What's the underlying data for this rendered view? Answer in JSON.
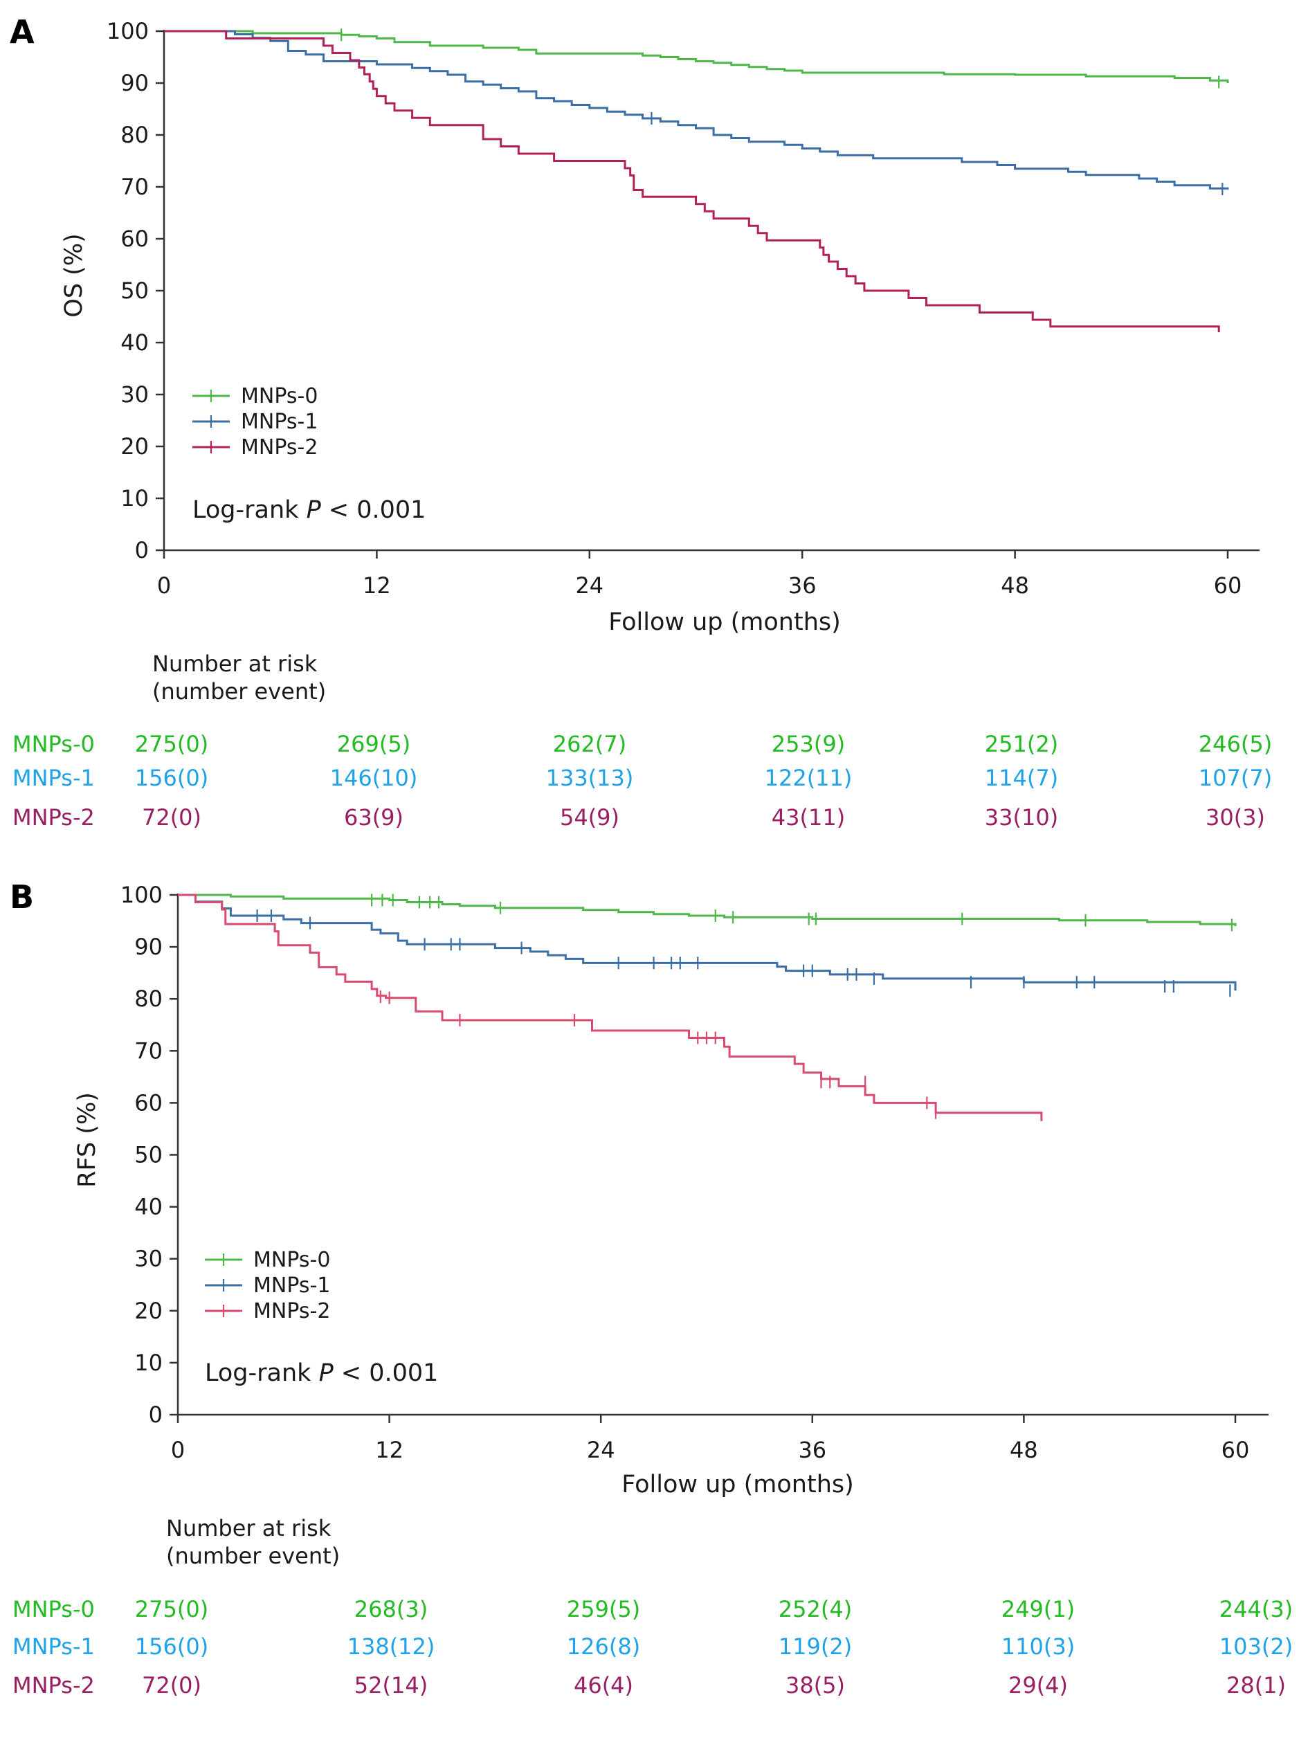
{
  "chart_data": [
    {
      "panel": "A",
      "type": "line",
      "ylabel": "OS (%)",
      "xlabel": "Follow up (months)",
      "xlim": [
        0,
        60
      ],
      "ylim": [
        0,
        100
      ],
      "xticks": [
        0,
        12,
        24,
        36,
        48,
        60
      ],
      "yticks": [
        0,
        10,
        20,
        30,
        40,
        50,
        60,
        70,
        80,
        90,
        100
      ],
      "grid": false,
      "legend_position": "lower-left",
      "annotation": {
        "prefix": "Log-rank ",
        "italic": "P",
        "suffix": " < 0.001"
      },
      "series": [
        {
          "name": "MNPs-0",
          "color": "#4db848",
          "points": [
            [
              0,
              100
            ],
            [
              5,
              99.6
            ],
            [
              10,
              99.3
            ],
            [
              11,
              99
            ],
            [
              12,
              98.6
            ],
            [
              13,
              97.9
            ],
            [
              15,
              97.2
            ],
            [
              18,
              96.8
            ],
            [
              20,
              96.4
            ],
            [
              21,
              95.7
            ],
            [
              27,
              95.3
            ],
            [
              28,
              95
            ],
            [
              29,
              94.6
            ],
            [
              30,
              94.2
            ],
            [
              31,
              93.9
            ],
            [
              32,
              93.5
            ],
            [
              33,
              93.1
            ],
            [
              34,
              92.7
            ],
            [
              35,
              92.4
            ],
            [
              36,
              92
            ],
            [
              40,
              92
            ],
            [
              44,
              91.7
            ],
            [
              48,
              91.6
            ],
            [
              52,
              91.3
            ],
            [
              57,
              91
            ],
            [
              59,
              90.5
            ],
            [
              60,
              90
            ]
          ],
          "censor": [
            [
              10,
              99.3
            ],
            [
              59.5,
              90.2
            ]
          ]
        },
        {
          "name": "MNPs-1",
          "color": "#3a6ea5",
          "points": [
            [
              0,
              100
            ],
            [
              4,
              99.4
            ],
            [
              5,
              98.7
            ],
            [
              6,
              98.1
            ],
            [
              7,
              96.2
            ],
            [
              8,
              95.5
            ],
            [
              9,
              94.2
            ],
            [
              12,
              93.6
            ],
            [
              14,
              92.9
            ],
            [
              15,
              92.3
            ],
            [
              16,
              91.6
            ],
            [
              17,
              90.3
            ],
            [
              18,
              89.7
            ],
            [
              19,
              89
            ],
            [
              20,
              88.4
            ],
            [
              21,
              87.1
            ],
            [
              22,
              86.5
            ],
            [
              23,
              85.8
            ],
            [
              24,
              85.2
            ],
            [
              25,
              84.5
            ],
            [
              26,
              83.9
            ],
            [
              27,
              83.2
            ],
            [
              28,
              82.6
            ],
            [
              29,
              81.9
            ],
            [
              30,
              81.3
            ],
            [
              31,
              80
            ],
            [
              32,
              79.4
            ],
            [
              33,
              78.7
            ],
            [
              35,
              78.1
            ],
            [
              36,
              77.4
            ],
            [
              37,
              76.8
            ],
            [
              38,
              76.1
            ],
            [
              40,
              75.5
            ],
            [
              45,
              74.8
            ],
            [
              47,
              74.2
            ],
            [
              48,
              73.5
            ],
            [
              51,
              72.9
            ],
            [
              52,
              72.3
            ],
            [
              55,
              71.6
            ],
            [
              56,
              71
            ],
            [
              57,
              70.3
            ],
            [
              59,
              69.7
            ],
            [
              60,
              69.5
            ]
          ],
          "censor": [
            [
              27.5,
              83.2
            ],
            [
              59.7,
              69.6
            ]
          ]
        },
        {
          "name": "MNPs-2",
          "color": "#b2205a",
          "points": [
            [
              0,
              100
            ],
            [
              3.5,
              98.6
            ],
            [
              9,
              97.2
            ],
            [
              9.5,
              95.8
            ],
            [
              10.5,
              94.4
            ],
            [
              11,
              93
            ],
            [
              11.3,
              91.7
            ],
            [
              11.6,
              90.3
            ],
            [
              11.8,
              88.9
            ],
            [
              12,
              87.5
            ],
            [
              12.5,
              86.1
            ],
            [
              13,
              84.7
            ],
            [
              14,
              83.3
            ],
            [
              15,
              81.9
            ],
            [
              18,
              79.2
            ],
            [
              19,
              77.8
            ],
            [
              20,
              76.4
            ],
            [
              22,
              75
            ],
            [
              24,
              75
            ],
            [
              26,
              73.6
            ],
            [
              26.3,
              72.2
            ],
            [
              26.5,
              69.4
            ],
            [
              27,
              68.1
            ],
            [
              30,
              66.7
            ],
            [
              30.5,
              65.3
            ],
            [
              31,
              63.9
            ],
            [
              33,
              62.5
            ],
            [
              33.5,
              61.1
            ],
            [
              34,
              59.7
            ],
            [
              37,
              58.3
            ],
            [
              37.2,
              56.9
            ],
            [
              37.5,
              55.6
            ],
            [
              38,
              54.2
            ],
            [
              38.5,
              52.8
            ],
            [
              39,
              51.4
            ],
            [
              39.5,
              50
            ],
            [
              42,
              48.6
            ],
            [
              43,
              47.2
            ],
            [
              46,
              45.8
            ],
            [
              49,
              44.4
            ],
            [
              50,
              43.1
            ],
            [
              59.5,
              43.1
            ],
            [
              59.5,
              42
            ]
          ],
          "censor": []
        }
      ],
      "risk_table": {
        "title_lines": [
          "Number at risk",
          "(number event)"
        ],
        "rows": [
          {
            "label": "MNPs-0",
            "color": "#22bb22",
            "values": [
              "275(0)",
              "269(5)",
              "262(7)",
              "253(9)",
              "251(2)",
              "246(5)"
            ]
          },
          {
            "label": "MNPs-1",
            "color": "#1fa2e8",
            "values": [
              "156(0)",
              "146(10)",
              "133(13)",
              "122(11)",
              "114(7)",
              "107(7)"
            ]
          },
          {
            "label": "MNPs-2",
            "color": "#9a1e62",
            "values": [
              "72(0)",
              "63(9)",
              "54(9)",
              "43(11)",
              "33(10)",
              "30(3)"
            ]
          }
        ]
      }
    },
    {
      "panel": "B",
      "type": "line",
      "ylabel": "RFS (%)",
      "xlabel": "Follow up (months)",
      "xlim": [
        0,
        60
      ],
      "ylim": [
        0,
        100
      ],
      "xticks": [
        0,
        12,
        24,
        36,
        48,
        60
      ],
      "yticks": [
        0,
        10,
        20,
        30,
        40,
        50,
        60,
        70,
        80,
        90,
        100
      ],
      "grid": false,
      "legend_position": "lower-left",
      "annotation": {
        "prefix": "Log-rank ",
        "italic": "P",
        "suffix": " < 0.001"
      },
      "series": [
        {
          "name": "MNPs-0",
          "color": "#4db848",
          "points": [
            [
              0,
              100
            ],
            [
              3,
              99.7
            ],
            [
              6,
              99.3
            ],
            [
              12,
              99
            ],
            [
              13,
              98.6
            ],
            [
              15,
              98.2
            ],
            [
              16,
              97.9
            ],
            [
              18,
              97.5
            ],
            [
              23,
              97.1
            ],
            [
              25,
              96.7
            ],
            [
              27,
              96.3
            ],
            [
              29,
              96
            ],
            [
              31,
              95.7
            ],
            [
              36,
              95.4
            ],
            [
              50,
              95.1
            ],
            [
              55,
              94.8
            ],
            [
              58,
              94.4
            ],
            [
              60,
              94
            ]
          ],
          "censor": [
            [
              11,
              99
            ],
            [
              11.6,
              99
            ],
            [
              12.2,
              99
            ],
            [
              13.7,
              98.6
            ],
            [
              14.3,
              98.6
            ],
            [
              14.8,
              98.6
            ],
            [
              18.3,
              97.5
            ],
            [
              30.5,
              96
            ],
            [
              31.5,
              95.7
            ],
            [
              35.8,
              95.4
            ],
            [
              36.2,
              95.4
            ],
            [
              44.5,
              95.4
            ],
            [
              51.5,
              95.1
            ],
            [
              59.8,
              94.2
            ]
          ]
        },
        {
          "name": "MNPs-1",
          "color": "#3a6ea5",
          "points": [
            [
              0,
              100
            ],
            [
              1,
              98.7
            ],
            [
              2.5,
              97.4
            ],
            [
              3,
              96
            ],
            [
              6,
              95.3
            ],
            [
              7,
              94.6
            ],
            [
              11,
              93.3
            ],
            [
              11.5,
              92.6
            ],
            [
              12.5,
              91.2
            ],
            [
              13,
              90.5
            ],
            [
              18,
              89.8
            ],
            [
              20,
              89.1
            ],
            [
              21,
              88.4
            ],
            [
              22,
              87.7
            ],
            [
              23,
              86.9
            ],
            [
              34,
              86.2
            ],
            [
              34.5,
              85.4
            ],
            [
              37,
              84.7
            ],
            [
              40,
              83.9
            ],
            [
              48,
              83.2
            ],
            [
              60,
              82.4
            ],
            [
              60,
              81.6
            ]
          ],
          "censor": [
            [
              4.5,
              96
            ],
            [
              5.3,
              96
            ],
            [
              7.5,
              94.6
            ],
            [
              14,
              90.5
            ],
            [
              15.5,
              90.5
            ],
            [
              16,
              90.5
            ],
            [
              19.5,
              89.8
            ],
            [
              25,
              86.9
            ],
            [
              27,
              86.9
            ],
            [
              28,
              86.9
            ],
            [
              28.5,
              86.9
            ],
            [
              29.5,
              86.9
            ],
            [
              35.5,
              85.4
            ],
            [
              36,
              85.4
            ],
            [
              38,
              84.7
            ],
            [
              38.5,
              84.7
            ],
            [
              39.5,
              83.9
            ],
            [
              45,
              83.2
            ],
            [
              48,
              83.2
            ],
            [
              51,
              83.2
            ],
            [
              52,
              83.2
            ],
            [
              56,
              82.4
            ],
            [
              56.5,
              82.4
            ],
            [
              59.7,
              81.6
            ]
          ]
        },
        {
          "name": "MNPs-2",
          "color": "#d94a6e",
          "points": [
            [
              0,
              100
            ],
            [
              1,
              98.6
            ],
            [
              2.5,
              97.2
            ],
            [
              2.7,
              94.4
            ],
            [
              5.5,
              93
            ],
            [
              5.7,
              90.3
            ],
            [
              7.5,
              88.9
            ],
            [
              8,
              86.1
            ],
            [
              9,
              84.7
            ],
            [
              9.5,
              83.3
            ],
            [
              11,
              81.9
            ],
            [
              11.3,
              80.6
            ],
            [
              11.8,
              80.2
            ],
            [
              13.5,
              77.6
            ],
            [
              15,
              75.9
            ],
            [
              23.5,
              73.9
            ],
            [
              29,
              72.5
            ],
            [
              31,
              70.8
            ],
            [
              31.3,
              68.9
            ],
            [
              35,
              67.5
            ],
            [
              35.5,
              65.8
            ],
            [
              36.5,
              64.6
            ],
            [
              37.5,
              63.2
            ],
            [
              39,
              61.5
            ],
            [
              39.5,
              60
            ],
            [
              43,
              58.1
            ],
            [
              49,
              58.1
            ],
            [
              49,
              56.5
            ]
          ],
          "censor": [
            [
              11.5,
              80.4
            ],
            [
              12,
              80.2
            ],
            [
              16,
              75.9
            ],
            [
              22.5,
              75.9
            ],
            [
              29.5,
              72.5
            ],
            [
              30,
              72.5
            ],
            [
              30.5,
              72.5
            ],
            [
              36.5,
              64
            ],
            [
              37,
              64
            ],
            [
              39,
              64
            ],
            [
              42.5,
              60
            ],
            [
              43,
              58.1
            ]
          ]
        }
      ],
      "risk_table": {
        "title_lines": [
          "Number at risk",
          "(number event)"
        ],
        "rows": [
          {
            "label": "MNPs-0",
            "color": "#22bb22",
            "values": [
              "275(0)",
              "268(3)",
              "259(5)",
              "252(4)",
              "249(1)",
              "244(3)"
            ]
          },
          {
            "label": "MNPs-1",
            "color": "#1fa2e8",
            "values": [
              "156(0)",
              "138(12)",
              "126(8)",
              "119(2)",
              "110(3)",
              "103(2)"
            ]
          },
          {
            "label": "MNPs-2",
            "color": "#9a1e62",
            "values": [
              "72(0)",
              "52(14)",
              "46(4)",
              "38(5)",
              "29(4)",
              "28(1)"
            ]
          }
        ]
      }
    }
  ]
}
